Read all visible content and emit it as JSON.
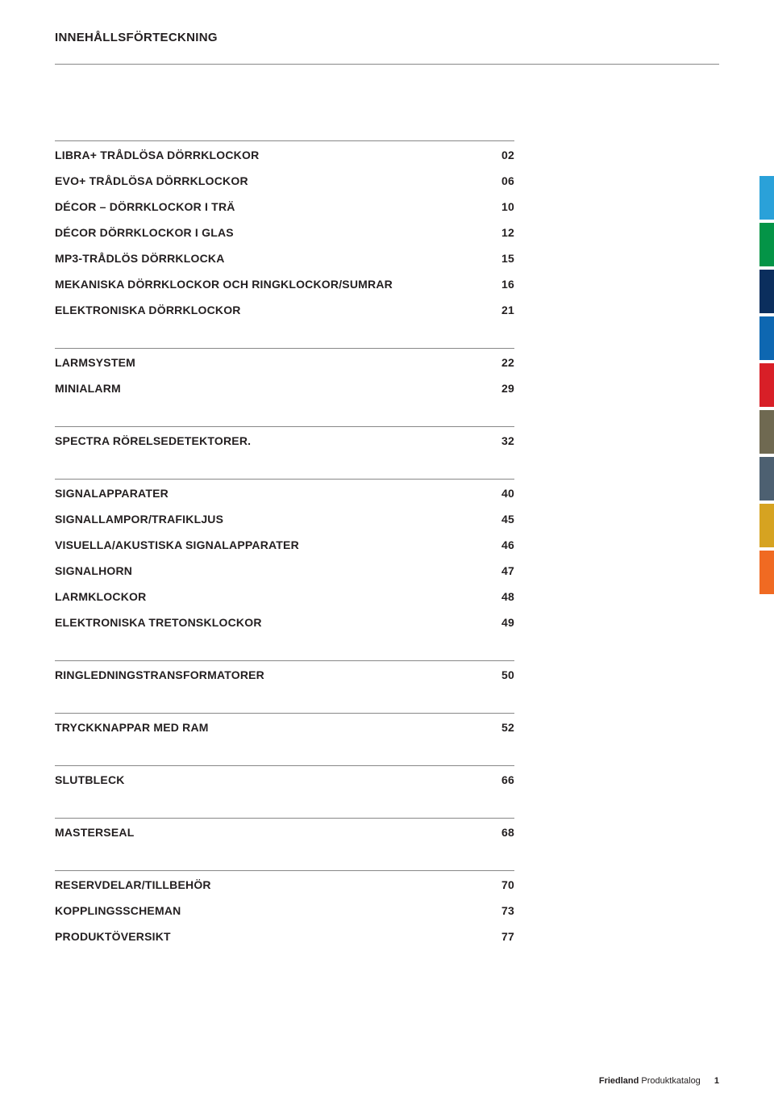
{
  "title": "INNEHÅLLSFÖRTECKNING",
  "sections": [
    {
      "items": [
        {
          "label": "LIBRA+ TRÅDLÖSA DÖRRKLOCKOR",
          "page": "02"
        },
        {
          "label": "EVO+ TRÅDLÖSA DÖRRKLOCKOR",
          "page": "06"
        },
        {
          "label": "DÉCOR – DÖRRKLOCKOR I TRÄ",
          "page": "10"
        },
        {
          "label": "DÉCOR DÖRRKLOCKOR I GLAS",
          "page": "12"
        },
        {
          "label": "MP3-TRÅDLÖS DÖRRKLOCKA",
          "page": "15"
        },
        {
          "label": "MEKANISKA DÖRRKLOCKOR OCH RINGKLOCKOR/SUMRAR",
          "page": "16"
        },
        {
          "label": "ELEKTRONISKA DÖRRKLOCKOR",
          "page": "21"
        }
      ]
    },
    {
      "items": [
        {
          "label": "LARMSYSTEM",
          "page": "22"
        },
        {
          "label": "MINIALARM",
          "page": "29"
        }
      ]
    },
    {
      "items": [
        {
          "label": "SPECTRA RÖRELSEDETEKTORER.",
          "page": "32"
        }
      ]
    },
    {
      "items": [
        {
          "label": "SIGNALAPPARATER",
          "page": "40"
        },
        {
          "label": "SIGNALLAMPOR/TRAFIKLJUS",
          "page": "45"
        },
        {
          "label": "VISUELLA/AKUSTISKA SIGNALAPPARATER",
          "page": "46"
        },
        {
          "label": "SIGNALHORN",
          "page": "47"
        },
        {
          "label": "LARMKLOCKOR",
          "page": "48"
        },
        {
          "label": "ELEKTRONISKA TRETONSKLOCKOR",
          "page": "49"
        }
      ]
    },
    {
      "items": [
        {
          "label": "RINGLEDNINGSTRANSFORMATORER",
          "page": "50"
        }
      ]
    },
    {
      "items": [
        {
          "label": "TRYCKKNAPPAR MED RAM",
          "page": "52"
        }
      ]
    },
    {
      "items": [
        {
          "label": "SLUTBLECK",
          "page": "66"
        }
      ]
    },
    {
      "items": [
        {
          "label": "MASTERSEAL",
          "page": "68"
        }
      ]
    },
    {
      "items": [
        {
          "label": "RESERVDELAR/TILLBEHÖR",
          "page": "70"
        },
        {
          "label": "KOPPLINGSSCHEMAN",
          "page": "73"
        },
        {
          "label": "PRODUKTÖVERSIKT",
          "page": "77"
        }
      ]
    }
  ],
  "tabs": {
    "colors": [
      "#2aa1d9",
      "#049447",
      "#0b2e5d",
      "#0e67b1",
      "#d81f27",
      "#6f6951",
      "#4d6071",
      "#d6a321",
      "#f06a22"
    ]
  },
  "footer": {
    "brand": "Friedland",
    "text": "Produktkatalog",
    "pagenum": "1"
  }
}
